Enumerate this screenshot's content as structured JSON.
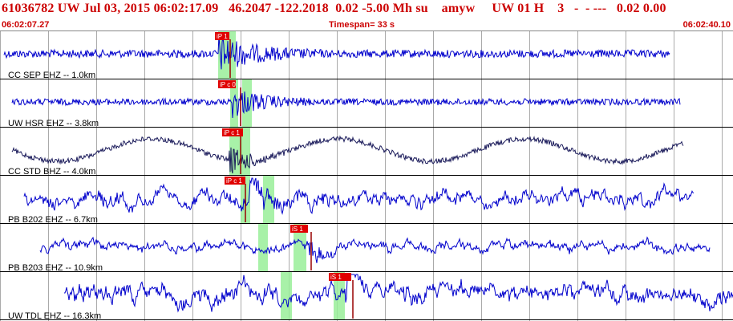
{
  "header": {
    "title": "61036782 UW Jul 03, 2015 06:02:17.09   46.2047 -122.2018  0.02 -5.00 Mh su    amyw     UW 01 H    3   -  - ---   0.02 0.00",
    "start_time": "06:02:07.27",
    "timespan": "Timespan=  33 s",
    "end_time": "06:02:40.10"
  },
  "colors": {
    "header_text": "#cc0000",
    "trace_blue": "#0000cc",
    "trace_navy": "#1a1a5a",
    "pick_red": "#e00000",
    "pick_window": "#99ee99",
    "grid": "#aaaaaa"
  },
  "channels": [
    {
      "label": "CC SEP EHZ -- 1.0km",
      "pick_label": "iP 1",
      "color": "trace_blue",
      "signal": "noise"
    },
    {
      "label": "UW HSR EHZ -- 3.8km",
      "pick_label": "iP c 0",
      "color": "trace_blue",
      "signal": "noise"
    },
    {
      "label": "CC STD BHZ -- 4.0km",
      "pick_label": "iP c 1",
      "color": "trace_navy",
      "signal": "long-period"
    },
    {
      "label": "PB B202 EHZ -- 6.7km",
      "pick_label": "iP c 1",
      "color": "trace_blue",
      "signal": "noise"
    },
    {
      "label": "PB B203 EHZ -- 10.9km",
      "pick_label": "iS 1",
      "color": "trace_blue",
      "signal": "noise"
    },
    {
      "label": "UW TDL EHZ -- 16.3km",
      "pick_label": "iS 1",
      "color": "trace_blue",
      "signal": "noise"
    }
  ]
}
